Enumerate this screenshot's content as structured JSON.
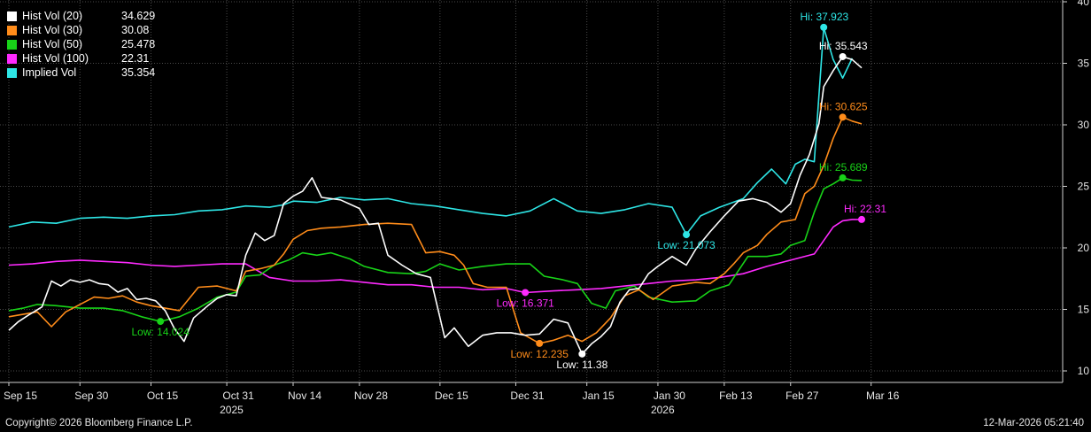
{
  "chart_data": {
    "type": "line",
    "ylim": [
      9,
      40.5
    ],
    "y_ticks": [
      10,
      15,
      20,
      25,
      30,
      35,
      40
    ],
    "x_ticks": [
      {
        "d": 0,
        "label": "Sep 15"
      },
      {
        "d": 15,
        "label": "Sep 30"
      },
      {
        "d": 30,
        "label": "Oct 15"
      },
      {
        "d": 46,
        "label": "Oct 31"
      },
      {
        "d": 60,
        "label": "Nov 14"
      },
      {
        "d": 74,
        "label": "Nov 28"
      },
      {
        "d": 91,
        "label": "Dec 15"
      },
      {
        "d": 107,
        "label": "Dec 31"
      },
      {
        "d": 122,
        "label": "Jan 15"
      },
      {
        "d": 137,
        "label": "Jan 30"
      },
      {
        "d": 151,
        "label": "Feb 13"
      },
      {
        "d": 165,
        "label": "Feb 27"
      },
      {
        "d": 182,
        "label": "Mar 16"
      }
    ],
    "year_labels": [
      {
        "d": 47,
        "label": "2025"
      },
      {
        "d": 138,
        "label": "2026"
      }
    ],
    "series": [
      {
        "name": "Implied Vol",
        "last": "35.354",
        "color": "#2ee6e6",
        "values": [
          [
            0,
            21.7
          ],
          [
            5,
            22.1
          ],
          [
            10,
            22.0
          ],
          [
            15,
            22.4
          ],
          [
            20,
            22.5
          ],
          [
            25,
            22.4
          ],
          [
            30,
            22.6
          ],
          [
            35,
            22.7
          ],
          [
            40,
            23.0
          ],
          [
            45,
            23.1
          ],
          [
            50,
            23.4
          ],
          [
            55,
            23.3
          ],
          [
            58,
            23.5
          ],
          [
            60,
            23.8
          ],
          [
            65,
            23.7
          ],
          [
            70,
            24.1
          ],
          [
            75,
            23.9
          ],
          [
            80,
            24.0
          ],
          [
            85,
            23.6
          ],
          [
            90,
            23.4
          ],
          [
            95,
            23.1
          ],
          [
            100,
            22.8
          ],
          [
            105,
            22.6
          ],
          [
            110,
            23.0
          ],
          [
            115,
            24.0
          ],
          [
            120,
            23.0
          ],
          [
            125,
            22.8
          ],
          [
            130,
            23.1
          ],
          [
            135,
            23.6
          ],
          [
            140,
            23.3
          ],
          [
            143,
            21.1
          ],
          [
            146,
            22.6
          ],
          [
            150,
            23.3
          ],
          [
            155,
            24.0
          ],
          [
            158,
            25.3
          ],
          [
            161,
            26.4
          ],
          [
            164,
            25.2
          ],
          [
            166,
            26.8
          ],
          [
            168,
            27.2
          ],
          [
            170,
            27.0
          ],
          [
            172,
            37.9
          ],
          [
            174,
            35.3
          ],
          [
            176,
            33.8
          ],
          [
            178,
            35.4
          ]
        ],
        "high": {
          "d": 172,
          "v": 37.923,
          "label": "Hi: 37.923"
        },
        "low": {
          "d": 143,
          "v": 21.073,
          "label": "Low: 21.073"
        }
      },
      {
        "name": "Hist Vol (100)",
        "last": "22.31",
        "color": "#ff2aff",
        "values": [
          [
            0,
            18.6
          ],
          [
            5,
            18.7
          ],
          [
            10,
            18.9
          ],
          [
            15,
            19.0
          ],
          [
            20,
            18.9
          ],
          [
            25,
            18.8
          ],
          [
            30,
            18.6
          ],
          [
            35,
            18.5
          ],
          [
            40,
            18.6
          ],
          [
            45,
            18.7
          ],
          [
            50,
            18.7
          ],
          [
            55,
            17.6
          ],
          [
            60,
            17.3
          ],
          [
            65,
            17.3
          ],
          [
            70,
            17.4
          ],
          [
            75,
            17.2
          ],
          [
            80,
            17.0
          ],
          [
            85,
            17.0
          ],
          [
            90,
            16.8
          ],
          [
            95,
            16.8
          ],
          [
            100,
            16.6
          ],
          [
            105,
            16.7
          ],
          [
            109,
            16.37
          ],
          [
            115,
            16.5
          ],
          [
            120,
            16.6
          ],
          [
            125,
            16.7
          ],
          [
            130,
            16.9
          ],
          [
            135,
            17.1
          ],
          [
            140,
            17.3
          ],
          [
            145,
            17.4
          ],
          [
            150,
            17.6
          ],
          [
            155,
            17.9
          ],
          [
            160,
            18.5
          ],
          [
            165,
            19.0
          ],
          [
            170,
            19.5
          ],
          [
            172,
            20.6
          ],
          [
            174,
            21.7
          ],
          [
            176,
            22.2
          ],
          [
            178,
            22.31
          ],
          [
            180,
            22.3
          ]
        ],
        "high": {
          "d": 180,
          "v": 22.31,
          "label": "Hi: 22.31"
        },
        "low": {
          "d": 109,
          "v": 16.371,
          "label": "Low: 16.371"
        }
      },
      {
        "name": "Hist Vol (50)",
        "last": "25.478",
        "color": "#18d318",
        "values": [
          [
            0,
            14.9
          ],
          [
            3,
            15.1
          ],
          [
            6,
            15.4
          ],
          [
            10,
            15.3
          ],
          [
            15,
            15.1
          ],
          [
            20,
            15.1
          ],
          [
            24,
            14.9
          ],
          [
            28,
            14.4
          ],
          [
            32,
            14.02
          ],
          [
            36,
            14.4
          ],
          [
            40,
            15.1
          ],
          [
            44,
            16.0
          ],
          [
            48,
            16.4
          ],
          [
            50,
            17.7
          ],
          [
            53,
            17.8
          ],
          [
            56,
            18.6
          ],
          [
            59,
            19.0
          ],
          [
            62,
            19.6
          ],
          [
            65,
            19.4
          ],
          [
            68,
            19.6
          ],
          [
            72,
            19.1
          ],
          [
            75,
            18.5
          ],
          [
            80,
            18.0
          ],
          [
            85,
            17.9
          ],
          [
            88,
            18.1
          ],
          [
            91,
            18.7
          ],
          [
            95,
            18.2
          ],
          [
            100,
            18.5
          ],
          [
            105,
            18.7
          ],
          [
            110,
            18.7
          ],
          [
            113,
            17.7
          ],
          [
            117,
            17.4
          ],
          [
            120,
            17.1
          ],
          [
            123,
            15.5
          ],
          [
            126,
            15.1
          ],
          [
            128,
            16.5
          ],
          [
            132,
            16.9
          ],
          [
            135,
            16.0
          ],
          [
            140,
            15.6
          ],
          [
            145,
            15.7
          ],
          [
            148,
            16.5
          ],
          [
            152,
            17.0
          ],
          [
            156,
            19.3
          ],
          [
            160,
            19.3
          ],
          [
            163,
            19.5
          ],
          [
            165,
            20.2
          ],
          [
            168,
            20.6
          ],
          [
            170,
            22.9
          ],
          [
            172,
            24.8
          ],
          [
            174,
            25.2
          ],
          [
            176,
            25.689
          ],
          [
            178,
            25.5
          ],
          [
            180,
            25.478
          ]
        ],
        "high": {
          "d": 176,
          "v": 25.689,
          "label": "Hi: 25.689"
        },
        "low": {
          "d": 32,
          "v": 14.024,
          "label": "Low: 14.024"
        }
      },
      {
        "name": "Hist Vol (30)",
        "last": "30.08",
        "color": "#ff8c1a",
        "values": [
          [
            0,
            14.4
          ],
          [
            3,
            14.6
          ],
          [
            6,
            14.8
          ],
          [
            9,
            13.6
          ],
          [
            12,
            14.8
          ],
          [
            15,
            15.4
          ],
          [
            18,
            16.0
          ],
          [
            21,
            15.9
          ],
          [
            24,
            16.1
          ],
          [
            27,
            15.6
          ],
          [
            30,
            15.3
          ],
          [
            33,
            15.1
          ],
          [
            36,
            14.9
          ],
          [
            40,
            16.8
          ],
          [
            44,
            16.9
          ],
          [
            48,
            16.5
          ],
          [
            50,
            18.1
          ],
          [
            53,
            18.3
          ],
          [
            56,
            18.6
          ],
          [
            58,
            19.5
          ],
          [
            60,
            20.7
          ],
          [
            63,
            21.4
          ],
          [
            66,
            21.6
          ],
          [
            70,
            21.7
          ],
          [
            75,
            21.9
          ],
          [
            80,
            22.0
          ],
          [
            85,
            21.9
          ],
          [
            88,
            19.6
          ],
          [
            91,
            19.7
          ],
          [
            94,
            19.4
          ],
          [
            96,
            18.6
          ],
          [
            98,
            17.1
          ],
          [
            101,
            16.8
          ],
          [
            105,
            16.8
          ],
          [
            108,
            13.1
          ],
          [
            112,
            12.235
          ],
          [
            115,
            12.5
          ],
          [
            118,
            12.9
          ],
          [
            121,
            12.4
          ],
          [
            124,
            13.1
          ],
          [
            127,
            14.3
          ],
          [
            130,
            16.1
          ],
          [
            133,
            16.6
          ],
          [
            136,
            15.8
          ],
          [
            140,
            16.9
          ],
          [
            145,
            17.2
          ],
          [
            148,
            17.1
          ],
          [
            151,
            17.9
          ],
          [
            153,
            18.7
          ],
          [
            155,
            19.6
          ],
          [
            158,
            20.2
          ],
          [
            160,
            21.1
          ],
          [
            163,
            22.1
          ],
          [
            166,
            22.3
          ],
          [
            168,
            24.4
          ],
          [
            170,
            25.0
          ],
          [
            172,
            26.7
          ],
          [
            174,
            28.9
          ],
          [
            176,
            30.625
          ],
          [
            178,
            30.3
          ],
          [
            180,
            30.08
          ]
        ],
        "high": {
          "d": 176,
          "v": 30.625,
          "label": "Hi: 30.625"
        },
        "low": {
          "d": 112,
          "v": 12.235,
          "label": "Low: 12.235"
        }
      },
      {
        "name": "Hist Vol (20)",
        "last": "34.629",
        "color": "#ffffff",
        "values": [
          [
            0,
            13.3
          ],
          [
            2,
            14.0
          ],
          [
            4,
            14.5
          ],
          [
            7,
            15.2
          ],
          [
            9,
            17.3
          ],
          [
            11,
            16.9
          ],
          [
            13,
            17.4
          ],
          [
            15,
            17.2
          ],
          [
            17,
            17.4
          ],
          [
            19,
            17.1
          ],
          [
            21,
            17.0
          ],
          [
            23,
            16.4
          ],
          [
            25,
            16.7
          ],
          [
            27,
            15.8
          ],
          [
            29,
            15.9
          ],
          [
            31,
            15.7
          ],
          [
            33,
            14.9
          ],
          [
            35,
            13.4
          ],
          [
            37,
            12.4
          ],
          [
            39,
            14.3
          ],
          [
            42,
            15.3
          ],
          [
            44,
            15.9
          ],
          [
            46,
            16.2
          ],
          [
            48,
            16.1
          ],
          [
            50,
            19.4
          ],
          [
            52,
            21.2
          ],
          [
            54,
            20.6
          ],
          [
            56,
            21.0
          ],
          [
            58,
            23.6
          ],
          [
            60,
            24.2
          ],
          [
            62,
            24.6
          ],
          [
            64,
            25.7
          ],
          [
            66,
            24.1
          ],
          [
            70,
            23.9
          ],
          [
            74,
            23.2
          ],
          [
            76,
            21.9
          ],
          [
            78,
            22.0
          ],
          [
            80,
            19.4
          ],
          [
            83,
            18.6
          ],
          [
            86,
            17.9
          ],
          [
            89,
            17.6
          ],
          [
            92,
            12.7
          ],
          [
            94,
            13.5
          ],
          [
            97,
            12.0
          ],
          [
            100,
            12.9
          ],
          [
            103,
            13.1
          ],
          [
            106,
            13.1
          ],
          [
            109,
            12.9
          ],
          [
            112,
            13.0
          ],
          [
            115,
            14.2
          ],
          [
            118,
            13.9
          ],
          [
            121,
            11.38
          ],
          [
            123,
            12.2
          ],
          [
            125,
            12.8
          ],
          [
            127,
            13.6
          ],
          [
            129,
            15.6
          ],
          [
            131,
            16.6
          ],
          [
            133,
            16.7
          ],
          [
            135,
            17.9
          ],
          [
            137,
            18.5
          ],
          [
            140,
            19.3
          ],
          [
            143,
            18.6
          ],
          [
            145,
            19.9
          ],
          [
            148,
            21.3
          ],
          [
            151,
            22.6
          ],
          [
            154,
            23.8
          ],
          [
            157,
            24.0
          ],
          [
            160,
            23.7
          ],
          [
            163,
            22.9
          ],
          [
            165,
            23.6
          ],
          [
            167,
            25.9
          ],
          [
            169,
            27.6
          ],
          [
            171,
            30.1
          ],
          [
            172,
            33.1
          ],
          [
            174,
            34.4
          ],
          [
            176,
            35.543
          ],
          [
            178,
            35.3
          ],
          [
            180,
            34.629
          ]
        ],
        "high": {
          "d": 176,
          "v": 35.543,
          "label": "Hi: 35.543"
        },
        "low": {
          "d": 121,
          "v": 11.38,
          "label": "Low: 11.38"
        }
      }
    ]
  },
  "legend": [
    {
      "name": "Hist Vol (20)",
      "value": "34.629",
      "color": "#ffffff"
    },
    {
      "name": "Hist Vol (30)",
      "value": "30.08",
      "color": "#ff8c1a"
    },
    {
      "name": "Hist Vol (50)",
      "value": "25.478",
      "color": "#18d318"
    },
    {
      "name": "Hist Vol (100)",
      "value": "22.31",
      "color": "#ff2aff"
    },
    {
      "name": "Implied Vol",
      "value": "35.354",
      "color": "#2ee6e6"
    }
  ],
  "footer": {
    "copyright": "Copyright© 2026 Bloomberg Finance L.P.",
    "timestamp": "12-Mar-2026 05:21:40"
  }
}
